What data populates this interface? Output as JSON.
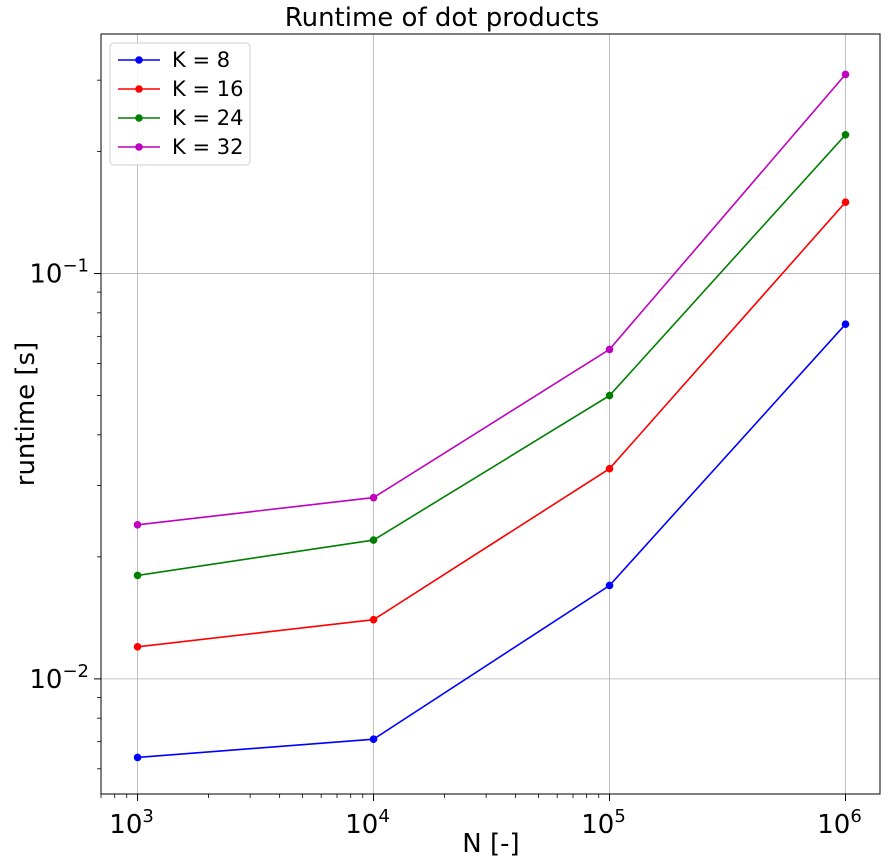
{
  "chart_data": {
    "type": "line",
    "title": "Runtime of dot products",
    "xlabel": "N [-]",
    "ylabel": "runtime [s]",
    "xscale": "log",
    "yscale": "log",
    "x": [
      1000,
      10000,
      100000,
      1000000
    ],
    "xlim": [
      700,
      1400000
    ],
    "ylim": [
      0.0052,
      0.39
    ],
    "x_tick_labels": [
      {
        "base": "10",
        "exp": "3"
      },
      {
        "base": "10",
        "exp": "4"
      },
      {
        "base": "10",
        "exp": "5"
      },
      {
        "base": "10",
        "exp": "6"
      }
    ],
    "y_tick_labels": [
      {
        "base": "10",
        "exp": "−2"
      },
      {
        "base": "10",
        "exp": "−1"
      }
    ],
    "grid": true,
    "legend_position": "top-left",
    "series": [
      {
        "name": "K = 8",
        "color": "#0000ff",
        "values": [
          0.0064,
          0.0071,
          0.017,
          0.075
        ]
      },
      {
        "name": "K = 16",
        "color": "#ff0000",
        "values": [
          0.012,
          0.014,
          0.033,
          0.15
        ]
      },
      {
        "name": "K = 24",
        "color": "#008000",
        "values": [
          0.018,
          0.022,
          0.05,
          0.22
        ]
      },
      {
        "name": "K = 32",
        "color": "#bf00bf",
        "values": [
          0.024,
          0.028,
          0.065,
          0.31
        ]
      }
    ]
  }
}
